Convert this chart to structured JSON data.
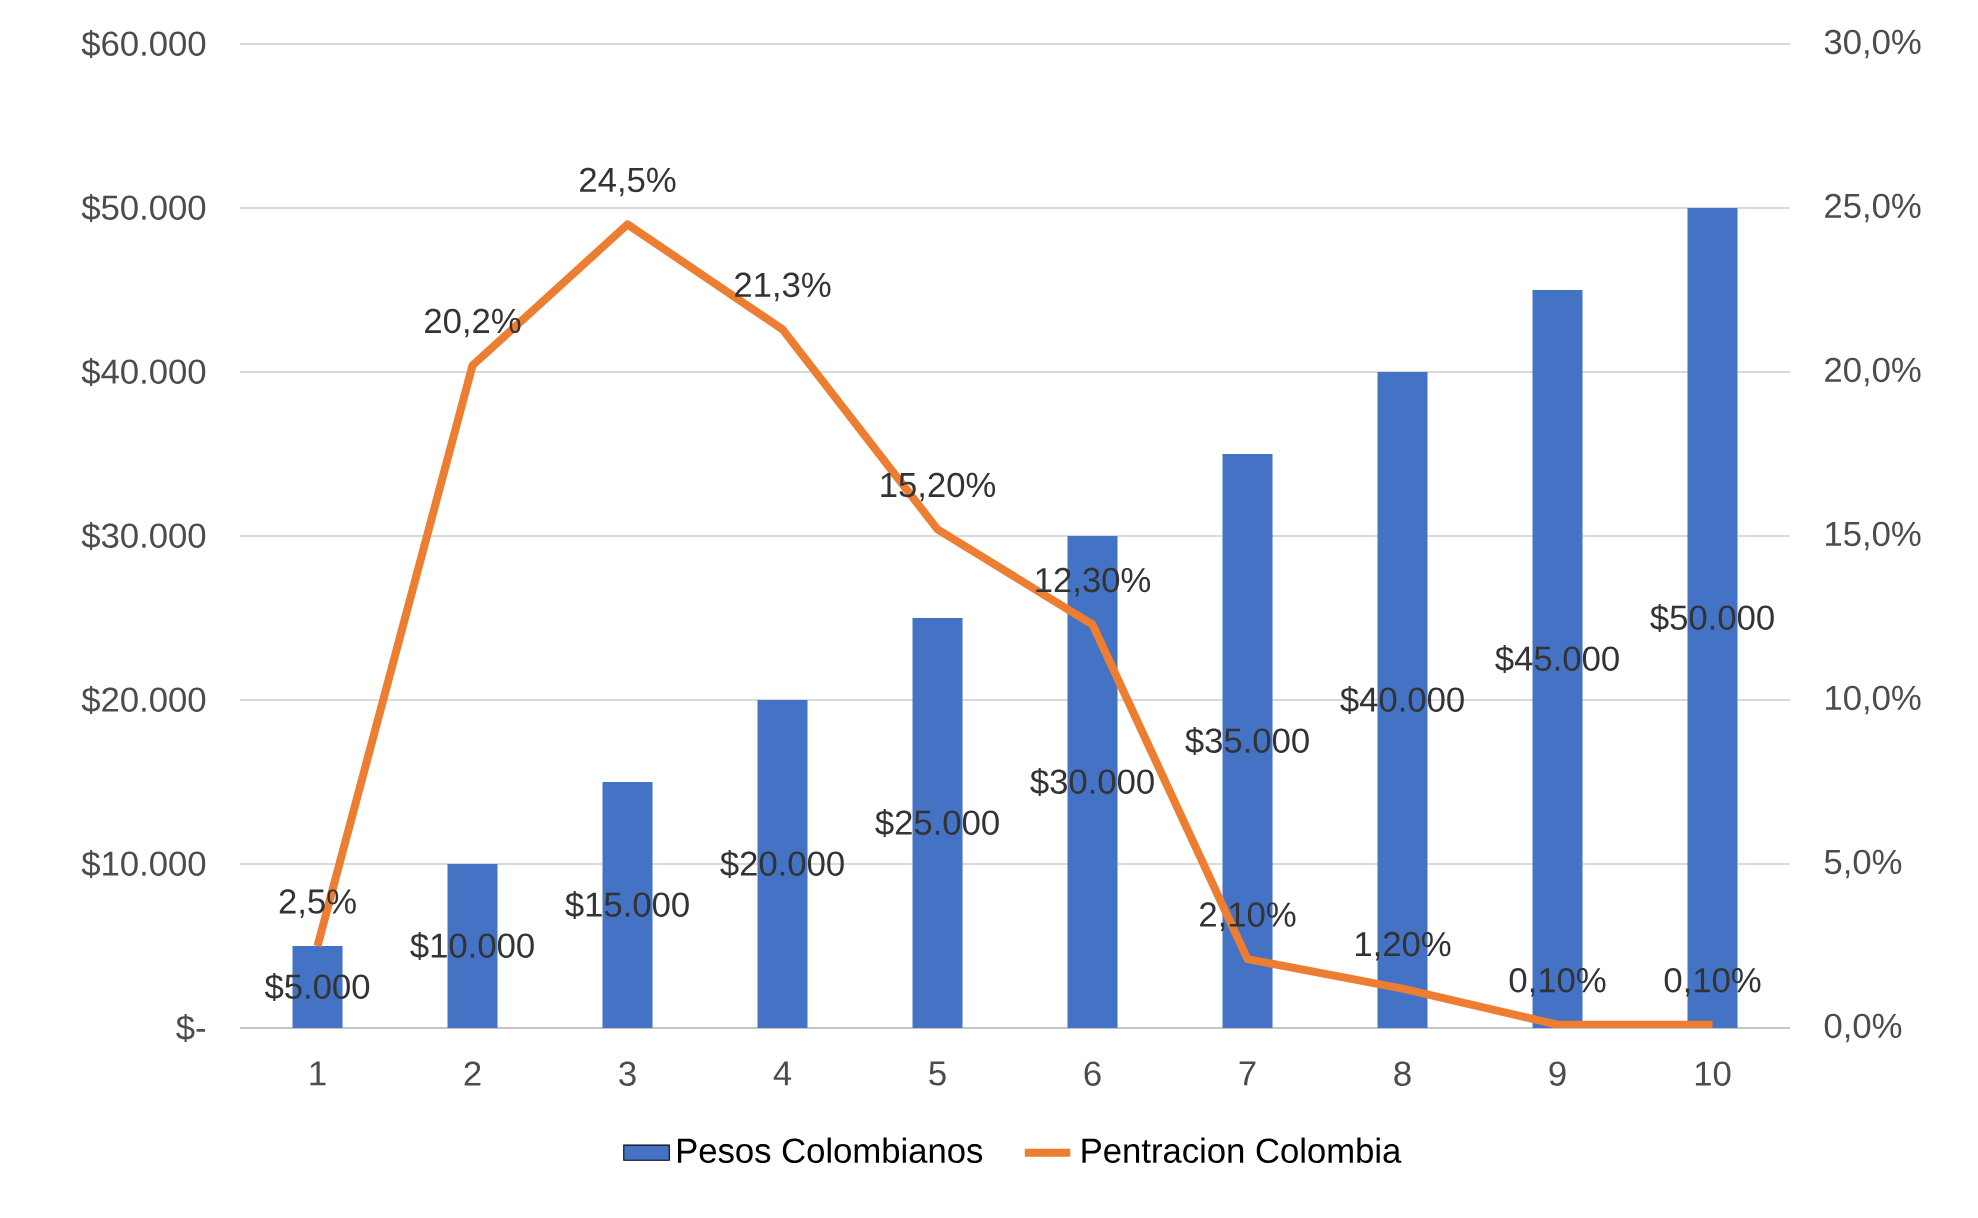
{
  "chart_data": {
    "type": "bar",
    "categories": [
      "1",
      "2",
      "3",
      "4",
      "5",
      "6",
      "7",
      "8",
      "9",
      "10"
    ],
    "series": [
      {
        "name": "Pesos Colombianos",
        "color": "#4472c4",
        "values": [
          5000,
          10000,
          15000,
          20000,
          25000,
          30000,
          35000,
          40000,
          45000,
          50000
        ],
        "value_labels": [
          "$5.000",
          "$10.000",
          "$15.000",
          "$20.000",
          "$25.000",
          "$30.000",
          "$35.000",
          "$40.000",
          "$45.000",
          "$50.000"
        ]
      },
      {
        "name": "Pentracion Colombia",
        "type": "line",
        "axis": "y2",
        "color": "#ed7d31",
        "values": [
          2.5,
          20.2,
          24.5,
          21.3,
          15.2,
          12.3,
          2.1,
          1.2,
          0.1,
          0.1
        ],
        "value_labels": [
          "2,5%",
          "20,2%",
          "24,5%",
          "21,3%",
          "15,20%",
          "12,30%",
          "2,10%",
          "1,20%",
          "0,10%",
          "0,10%"
        ]
      }
    ],
    "ylim": [
      0,
      60000
    ],
    "yticks": [
      {
        "value": 0,
        "label": "$-"
      },
      {
        "value": 10000,
        "label": "$10.000"
      },
      {
        "value": 20000,
        "label": "$20.000"
      },
      {
        "value": 30000,
        "label": "$30.000"
      },
      {
        "value": 40000,
        "label": "$40.000"
      },
      {
        "value": 50000,
        "label": "$50.000"
      },
      {
        "value": 60000,
        "label": "$60.000"
      }
    ],
    "y2lim": [
      0,
      30
    ],
    "y2ticks": [
      {
        "value": 0,
        "label": "0,0%"
      },
      {
        "value": 5,
        "label": "5,0%"
      },
      {
        "value": 10,
        "label": "10,0%"
      },
      {
        "value": 15,
        "label": "15,0%"
      },
      {
        "value": 20,
        "label": "20,0%"
      },
      {
        "value": 25,
        "label": "25,0%"
      },
      {
        "value": 30,
        "label": "30,0%"
      }
    ],
    "grid": true,
    "legend": "bottom",
    "marker": "none"
  }
}
